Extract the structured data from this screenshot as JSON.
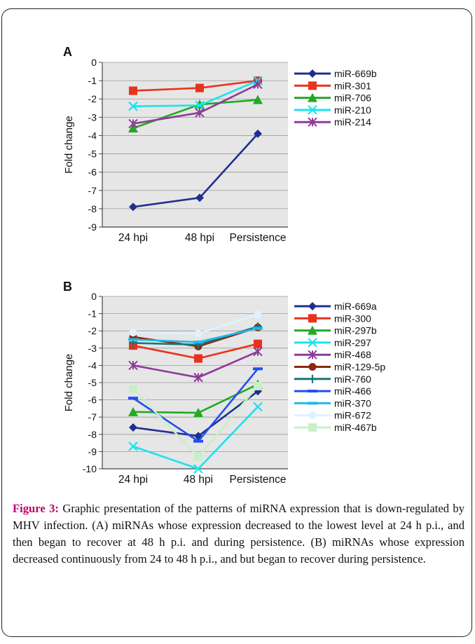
{
  "figure_caption": {
    "label": "Figure 3:",
    "text": "Graphic presentation of the patterns of miRNA expression that is down-regulated by MHV infection. (A) miRNAs whose expression decreased to the lowest level at 24 h p.i., and then began to recover at 48 h p.i. and during persistence. (B) miRNAs whose expression decreased continuously from 24 to 48 h p.i., and but began to recover during persistence."
  },
  "chart_data": [
    {
      "panel_label": "A",
      "type": "line",
      "ylabel": "Fold change",
      "xlabel": "",
      "categories": [
        "24 hpi",
        "48 hpi",
        "Persistence"
      ],
      "ylim": [
        -9,
        0
      ],
      "yticks": [
        0,
        -1,
        -2,
        -3,
        -4,
        -5,
        -6,
        -7,
        -8,
        -9
      ],
      "grid": true,
      "legend_position": "right",
      "series": [
        {
          "name": "miR-669b",
          "values": [
            -7.9,
            -7.4,
            -3.9
          ],
          "color": "#1f2f8f",
          "marker": "diamond"
        },
        {
          "name": "miR-301",
          "values": [
            -1.55,
            -1.4,
            -1.0
          ],
          "color": "#e8321e",
          "marker": "square"
        },
        {
          "name": "miR-706",
          "values": [
            -3.6,
            -2.3,
            -2.05
          ],
          "color": "#22aa22",
          "marker": "triangle"
        },
        {
          "name": "miR-210",
          "values": [
            -2.4,
            -2.35,
            -1.0
          ],
          "color": "#19e3f0",
          "marker": "x"
        },
        {
          "name": "miR-214",
          "values": [
            -3.35,
            -2.75,
            -1.2
          ],
          "color": "#8e3a9a",
          "marker": "star"
        }
      ]
    },
    {
      "panel_label": "B",
      "type": "line",
      "ylabel": "Fold change",
      "xlabel": "",
      "categories": [
        "24 hpi",
        "48 hpi",
        "Persistence"
      ],
      "ylim": [
        -10,
        0
      ],
      "yticks": [
        0,
        -1,
        -2,
        -3,
        -4,
        -5,
        -6,
        -7,
        -8,
        -9,
        -10
      ],
      "grid": true,
      "legend_position": "right",
      "series": [
        {
          "name": "miR-669a",
          "values": [
            -7.6,
            -8.1,
            -5.5
          ],
          "color": "#1f2f8f",
          "marker": "diamond"
        },
        {
          "name": "miR-300",
          "values": [
            -2.85,
            -3.6,
            -2.75
          ],
          "color": "#e8321e",
          "marker": "square"
        },
        {
          "name": "miR-297b",
          "values": [
            -6.7,
            -6.75,
            -5.1
          ],
          "color": "#22aa22",
          "marker": "triangle"
        },
        {
          "name": "miR-297",
          "values": [
            -8.7,
            -10.0,
            -6.4
          ],
          "color": "#19e3f0",
          "marker": "x"
        },
        {
          "name": "miR-468",
          "values": [
            -4.0,
            -4.7,
            -3.2
          ],
          "color": "#8e3a9a",
          "marker": "star"
        },
        {
          "name": "miR-129-5p",
          "values": [
            -2.35,
            -2.9,
            -1.8
          ],
          "color": "#8a2a10",
          "marker": "circle"
        },
        {
          "name": "miR-760",
          "values": [
            -2.7,
            -2.8,
            -1.75
          ],
          "color": "#157a7a",
          "marker": "plus"
        },
        {
          "name": "miR-466",
          "values": [
            -5.9,
            -8.4,
            -4.2
          ],
          "color": "#1f4ff0",
          "marker": "dash"
        },
        {
          "name": "miR-370",
          "values": [
            -2.5,
            -2.65,
            -1.85
          ],
          "color": "#20b8f0",
          "marker": "dash"
        },
        {
          "name": "miR-672",
          "values": [
            -2.1,
            -2.15,
            -1.05
          ],
          "color": "#dff2ff",
          "marker": "circle"
        },
        {
          "name": "miR-467b",
          "values": [
            -5.35,
            -9.3,
            -5.2
          ],
          "color": "#c8f0c8",
          "marker": "square"
        }
      ]
    }
  ]
}
